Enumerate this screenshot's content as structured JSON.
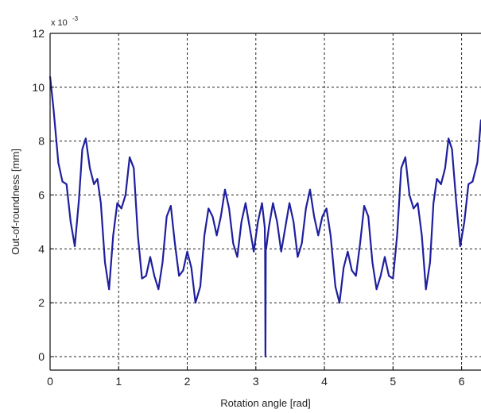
{
  "chart_data": {
    "type": "line",
    "xlabel": "Rotation angle [rad]",
    "ylabel": "Out-of-roundness [mm]",
    "y_multiplier_base": "x 10",
    "y_multiplier_exponent": "-3",
    "xlim": [
      0,
      6.283
    ],
    "ylim": [
      -0.0005,
      0.012
    ],
    "grid": true,
    "x_ticks": [
      0,
      1,
      2,
      3,
      4,
      5,
      6
    ],
    "x_tick_labels": [
      "0",
      "1",
      "2",
      "3",
      "4",
      "5",
      "6"
    ],
    "y_ticks": [
      0,
      0.002,
      0.004,
      0.006,
      0.008,
      0.01,
      0.012
    ],
    "y_tick_labels": [
      "0",
      "2",
      "4",
      "6",
      "8",
      "10",
      "12"
    ],
    "series": [
      {
        "color": "#1f1f9e",
        "x": [
          0.0,
          0.05,
          0.12,
          0.18,
          0.24,
          0.3,
          0.36,
          0.42,
          0.47,
          0.52,
          0.58,
          0.64,
          0.69,
          0.74,
          0.8,
          0.86,
          0.92,
          0.98,
          1.04,
          1.1,
          1.16,
          1.22,
          1.28,
          1.34,
          1.4,
          1.46,
          1.52,
          1.58,
          1.64,
          1.7,
          1.76,
          1.82,
          1.88,
          1.94,
          2.0,
          2.06,
          2.12,
          2.19,
          2.25,
          2.31,
          2.37,
          2.43,
          2.49,
          2.55,
          2.61,
          2.67,
          2.73,
          2.79,
          2.85,
          2.91,
          2.97,
          3.03,
          3.09,
          3.13,
          3.135,
          3.14,
          3.145,
          3.15,
          3.19,
          3.25,
          3.31,
          3.37,
          3.43,
          3.49,
          3.55,
          3.61,
          3.67,
          3.73,
          3.79,
          3.85,
          3.91,
          3.97,
          4.03,
          4.09,
          4.16,
          4.22,
          4.28,
          4.34,
          4.4,
          4.46,
          4.52,
          4.58,
          4.64,
          4.7,
          4.76,
          4.82,
          4.88,
          4.94,
          5.0,
          5.06,
          5.12,
          5.18,
          5.24,
          5.3,
          5.36,
          5.42,
          5.48,
          5.54,
          5.59,
          5.64,
          5.7,
          5.76,
          5.81,
          5.86,
          5.92,
          5.98,
          6.04,
          6.1,
          6.16,
          6.23,
          6.283
        ],
        "y": [
          0.0104,
          0.0092,
          0.0072,
          0.0065,
          0.0064,
          0.005,
          0.0041,
          0.0058,
          0.0077,
          0.0081,
          0.007,
          0.0064,
          0.0066,
          0.0057,
          0.0035,
          0.0025,
          0.0045,
          0.0057,
          0.0055,
          0.006,
          0.0074,
          0.007,
          0.0045,
          0.0029,
          0.003,
          0.0037,
          0.003,
          0.0025,
          0.0035,
          0.0052,
          0.0056,
          0.0042,
          0.003,
          0.0032,
          0.0039,
          0.0033,
          0.002,
          0.0026,
          0.0045,
          0.0055,
          0.0052,
          0.0045,
          0.0052,
          0.0062,
          0.0055,
          0.0042,
          0.0037,
          0.005,
          0.0057,
          0.0048,
          0.0039,
          0.005,
          0.0057,
          0.0048,
          0.004,
          0.0,
          0.004,
          0.004,
          0.0048,
          0.0057,
          0.005,
          0.0039,
          0.0048,
          0.0057,
          0.005,
          0.0037,
          0.0042,
          0.0055,
          0.0062,
          0.0052,
          0.0045,
          0.0052,
          0.0055,
          0.0045,
          0.0026,
          0.002,
          0.0033,
          0.0039,
          0.0032,
          0.003,
          0.0042,
          0.0056,
          0.0052,
          0.0035,
          0.0025,
          0.003,
          0.0037,
          0.003,
          0.0029,
          0.0045,
          0.007,
          0.0074,
          0.006,
          0.0055,
          0.0057,
          0.0045,
          0.0025,
          0.0035,
          0.0057,
          0.0066,
          0.0064,
          0.007,
          0.0081,
          0.0077,
          0.0058,
          0.0041,
          0.005,
          0.0064,
          0.0065,
          0.0072,
          0.0088
        ]
      }
    ]
  }
}
